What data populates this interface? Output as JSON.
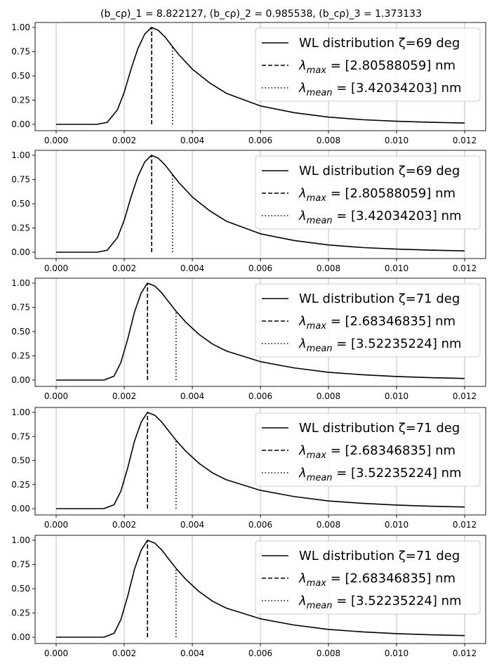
{
  "figure": {
    "title": "(b_cρ)_1 = 8.822127, (b_cρ)_2 = 0.985538, (b_cρ)_3 = 1.373133"
  },
  "chart_data": [
    {
      "type": "line",
      "xlim": [
        0.0,
        0.012
      ],
      "ylim": [
        0.0,
        1.0
      ],
      "xticks": [
        "0.000",
        "0.002",
        "0.004",
        "0.006",
        "0.008",
        "0.010",
        "0.012"
      ],
      "yticks": [
        "0.00",
        "0.25",
        "0.50",
        "0.75",
        "1.00"
      ],
      "grid": "x",
      "legend_position": "top-right",
      "peak_x": 0.002806,
      "mean_x": 0.00342,
      "curve": {
        "x": [
          0,
          0.0012,
          0.0015,
          0.0018,
          0.002,
          0.0022,
          0.0024,
          0.0026,
          0.0028,
          0.003,
          0.0032,
          0.0034,
          0.0036,
          0.004,
          0.0045,
          0.005,
          0.006,
          0.007,
          0.008,
          0.009,
          0.01,
          0.011,
          0.012
        ],
        "y": [
          0,
          0.0,
          0.02,
          0.15,
          0.33,
          0.57,
          0.78,
          0.93,
          1.0,
          0.97,
          0.9,
          0.81,
          0.72,
          0.57,
          0.43,
          0.32,
          0.19,
          0.12,
          0.075,
          0.048,
          0.032,
          0.021,
          0.014
        ]
      },
      "series": [
        {
          "name": "WL distribution ζ=69 deg",
          "style": "solid"
        },
        {
          "name": "λ_max = [2.80588059] nm",
          "style": "dashed"
        },
        {
          "name": "λ_mean = [3.42034203] nm",
          "style": "dotted"
        }
      ]
    },
    {
      "type": "line",
      "xlim": [
        0.0,
        0.012
      ],
      "ylim": [
        0.0,
        1.0
      ],
      "xticks": [
        "0.000",
        "0.002",
        "0.004",
        "0.006",
        "0.008",
        "0.010",
        "0.012"
      ],
      "yticks": [
        "0.00",
        "0.25",
        "0.50",
        "0.75",
        "1.00"
      ],
      "grid": "x",
      "legend_position": "top-right",
      "peak_x": 0.002806,
      "mean_x": 0.00342,
      "curve": {
        "x": [
          0,
          0.0012,
          0.0015,
          0.0018,
          0.002,
          0.0022,
          0.0024,
          0.0026,
          0.0028,
          0.003,
          0.0032,
          0.0034,
          0.0036,
          0.004,
          0.0045,
          0.005,
          0.006,
          0.007,
          0.008,
          0.009,
          0.01,
          0.011,
          0.012
        ],
        "y": [
          0,
          0.0,
          0.02,
          0.15,
          0.33,
          0.57,
          0.78,
          0.93,
          1.0,
          0.97,
          0.9,
          0.81,
          0.72,
          0.57,
          0.43,
          0.32,
          0.19,
          0.12,
          0.075,
          0.048,
          0.032,
          0.021,
          0.014
        ]
      },
      "series": [
        {
          "name": "WL distribution ζ=69 deg",
          "style": "solid"
        },
        {
          "name": "λ_max = [2.80588059] nm",
          "style": "dashed"
        },
        {
          "name": "λ_mean = [3.42034203] nm",
          "style": "dotted"
        }
      ]
    },
    {
      "type": "line",
      "xlim": [
        0.0,
        0.012
      ],
      "ylim": [
        0.0,
        1.0
      ],
      "xticks": [
        "0.000",
        "0.002",
        "0.004",
        "0.006",
        "0.008",
        "0.010",
        "0.012"
      ],
      "yticks": [
        "0.00",
        "0.25",
        "0.50",
        "0.75",
        "1.00"
      ],
      "grid": "x",
      "legend_position": "top-right",
      "peak_x": 0.002683,
      "mean_x": 0.003522,
      "curve": {
        "x": [
          0,
          0.0014,
          0.0017,
          0.0019,
          0.0021,
          0.0023,
          0.0025,
          0.002683,
          0.0029,
          0.0031,
          0.0033,
          0.003522,
          0.0038,
          0.0042,
          0.0046,
          0.005,
          0.006,
          0.007,
          0.008,
          0.009,
          0.01,
          0.011,
          0.012
        ],
        "y": [
          0,
          0.0,
          0.04,
          0.18,
          0.42,
          0.7,
          0.9,
          1.0,
          0.97,
          0.9,
          0.81,
          0.71,
          0.6,
          0.47,
          0.37,
          0.3,
          0.19,
          0.125,
          0.08,
          0.055,
          0.037,
          0.025,
          0.017
        ]
      },
      "series": [
        {
          "name": "WL distribution ζ=71 deg",
          "style": "solid"
        },
        {
          "name": "λ_max = [2.68346835] nm",
          "style": "dashed"
        },
        {
          "name": "λ_mean = [3.52235224] nm",
          "style": "dotted"
        }
      ]
    },
    {
      "type": "line",
      "xlim": [
        0.0,
        0.012
      ],
      "ylim": [
        0.0,
        1.0
      ],
      "xticks": [
        "0.000",
        "0.002",
        "0.004",
        "0.006",
        "0.008",
        "0.010",
        "0.012"
      ],
      "yticks": [
        "0.00",
        "0.25",
        "0.50",
        "0.75",
        "1.00"
      ],
      "grid": "x",
      "legend_position": "top-right",
      "peak_x": 0.002683,
      "mean_x": 0.003522,
      "curve": {
        "x": [
          0,
          0.0014,
          0.0017,
          0.0019,
          0.0021,
          0.0023,
          0.0025,
          0.002683,
          0.0029,
          0.0031,
          0.0033,
          0.003522,
          0.0038,
          0.0042,
          0.0046,
          0.005,
          0.006,
          0.007,
          0.008,
          0.009,
          0.01,
          0.011,
          0.012
        ],
        "y": [
          0,
          0.0,
          0.04,
          0.18,
          0.42,
          0.7,
          0.9,
          1.0,
          0.97,
          0.9,
          0.81,
          0.71,
          0.6,
          0.47,
          0.37,
          0.3,
          0.19,
          0.125,
          0.08,
          0.055,
          0.037,
          0.025,
          0.017
        ]
      },
      "series": [
        {
          "name": "WL distribution ζ=71 deg",
          "style": "solid"
        },
        {
          "name": "λ_max = [2.68346835] nm",
          "style": "dashed"
        },
        {
          "name": "λ_mean = [3.52235224] nm",
          "style": "dotted"
        }
      ]
    },
    {
      "type": "line",
      "xlim": [
        0.0,
        0.012
      ],
      "ylim": [
        0.0,
        1.0
      ],
      "xticks": [
        "0.000",
        "0.002",
        "0.004",
        "0.006",
        "0.008",
        "0.010",
        "0.012"
      ],
      "yticks": [
        "0.00",
        "0.25",
        "0.50",
        "0.75",
        "1.00"
      ],
      "grid": "x",
      "legend_position": "top-right",
      "peak_x": 0.002683,
      "mean_x": 0.003522,
      "curve": {
        "x": [
          0,
          0.0014,
          0.0017,
          0.0019,
          0.0021,
          0.0023,
          0.0025,
          0.002683,
          0.0029,
          0.0031,
          0.0033,
          0.003522,
          0.0038,
          0.0042,
          0.0046,
          0.005,
          0.006,
          0.007,
          0.008,
          0.009,
          0.01,
          0.011,
          0.012
        ],
        "y": [
          0,
          0.0,
          0.04,
          0.18,
          0.42,
          0.7,
          0.9,
          1.0,
          0.97,
          0.9,
          0.81,
          0.71,
          0.6,
          0.47,
          0.37,
          0.3,
          0.19,
          0.125,
          0.08,
          0.055,
          0.037,
          0.025,
          0.017
        ]
      },
      "series": [
        {
          "name": "WL distribution ζ=71 deg",
          "style": "solid"
        },
        {
          "name": "λ_max = [2.68346835] nm",
          "style": "dashed"
        },
        {
          "name": "λ_mean = [3.52235224] nm",
          "style": "dotted"
        }
      ]
    }
  ]
}
